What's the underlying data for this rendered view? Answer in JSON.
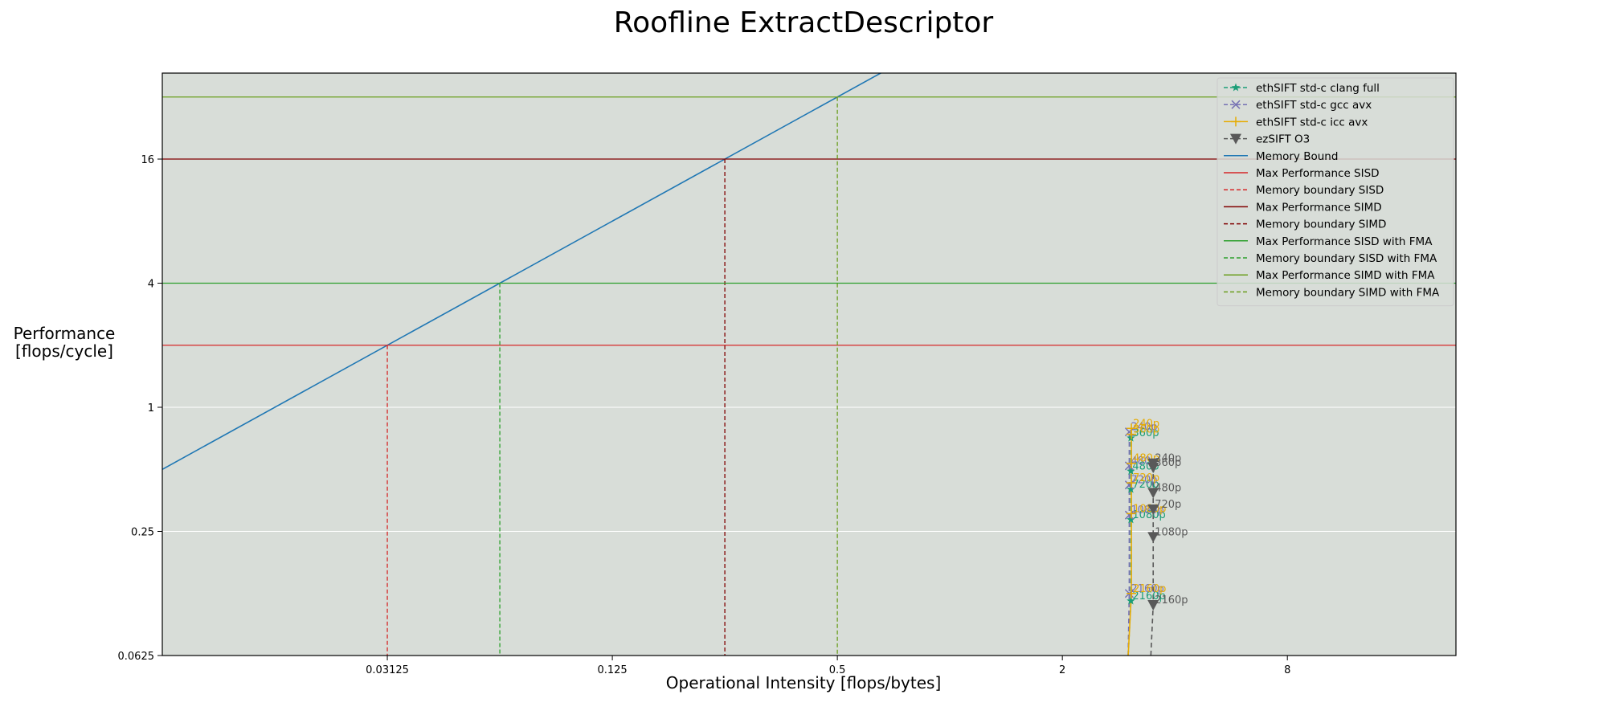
{
  "chart_data": {
    "type": "line",
    "title": "Roofline ExtractDescriptor",
    "xlabel": "Operational Intensity [flops/bytes]",
    "ylabel_lines": [
      "Performance",
      "[flops/cycle]"
    ],
    "x_scale": "log2",
    "y_scale": "log2",
    "xlim": [
      0.0078125,
      22.6
    ],
    "ylim": [
      0.0625,
      41.8
    ],
    "x_ticks": [
      {
        "value": 0.03125,
        "label": "0.03125"
      },
      {
        "value": 0.125,
        "label": "0.125"
      },
      {
        "value": 0.5,
        "label": "0.5"
      },
      {
        "value": 2,
        "label": "2"
      },
      {
        "value": 8,
        "label": "8"
      }
    ],
    "y_ticks": [
      {
        "value": 0.0625,
        "label": "0.0625"
      },
      {
        "value": 0.25,
        "label": "0.25"
      },
      {
        "value": 1,
        "label": "1"
      },
      {
        "value": 4,
        "label": "4"
      },
      {
        "value": 16,
        "label": "16"
      }
    ],
    "grid": "horizontal",
    "legend_position": "top-right",
    "background": "#d8ddd8",
    "series": [
      {
        "name": "ethSIFT std-c clang full",
        "kind": "measured",
        "color": "#1b9e77",
        "marker": "star",
        "line": "dashed",
        "points": [
          {
            "x": 3.0,
            "y": 0.045,
            "label": ""
          },
          {
            "x": 3.05,
            "y": 0.115,
            "label": "2160p"
          },
          {
            "x": 3.05,
            "y": 0.285,
            "label": "1080p"
          },
          {
            "x": 3.05,
            "y": 0.4,
            "label": "720p"
          },
          {
            "x": 3.05,
            "y": 0.49,
            "label": "480p"
          },
          {
            "x": 3.05,
            "y": 0.71,
            "label": "360p"
          }
        ]
      },
      {
        "name": "ethSIFT std-c gcc avx",
        "kind": "measured",
        "color": "#7570b3",
        "marker": "x",
        "line": "dashed",
        "points": [
          {
            "x": 3.0,
            "y": 0.045,
            "label": ""
          },
          {
            "x": 3.02,
            "y": 0.125,
            "label": "2160p"
          },
          {
            "x": 3.02,
            "y": 0.3,
            "label": "1080p"
          },
          {
            "x": 3.02,
            "y": 0.42,
            "label": "720p"
          },
          {
            "x": 3.02,
            "y": 0.52,
            "label": "480p"
          },
          {
            "x": 3.02,
            "y": 0.76,
            "label": "240p"
          }
        ]
      },
      {
        "name": "ethSIFT std-c icc avx",
        "kind": "measured",
        "color": "#e6ab02",
        "marker": "plus",
        "line": "solid",
        "points": [
          {
            "x": 3.0,
            "y": 0.045,
            "label": ""
          },
          {
            "x": 3.06,
            "y": 0.125,
            "label": "2160p"
          },
          {
            "x": 3.06,
            "y": 0.305,
            "label": "1080p"
          },
          {
            "x": 3.06,
            "y": 0.43,
            "label": "720p"
          },
          {
            "x": 3.06,
            "y": 0.535,
            "label": "480p"
          },
          {
            "x": 3.06,
            "y": 0.74,
            "label": "360p"
          },
          {
            "x": 3.06,
            "y": 0.79,
            "label": "240p"
          }
        ]
      },
      {
        "name": "ezSIFT O3",
        "kind": "measured",
        "color": "#595959",
        "marker": "triangle_down",
        "line": "dashed",
        "points": [
          {
            "x": 3.45,
            "y": 0.045,
            "label": ""
          },
          {
            "x": 3.5,
            "y": 0.11,
            "label": "2160p"
          },
          {
            "x": 3.5,
            "y": 0.235,
            "label": "1080p"
          },
          {
            "x": 3.5,
            "y": 0.32,
            "label": "720p"
          },
          {
            "x": 3.5,
            "y": 0.385,
            "label": "480p"
          },
          {
            "x": 3.5,
            "y": 0.51,
            "label": "360p"
          },
          {
            "x": 3.5,
            "y": 0.535,
            "label": "240p"
          }
        ]
      },
      {
        "name": "Memory Bound",
        "kind": "bandwidth",
        "color": "#1f77b4",
        "line": "solid",
        "slope_flops_per_byte": 64
      },
      {
        "name": "Max Performance SISD",
        "kind": "hline",
        "color": "#d62728",
        "line": "solid",
        "value": 2
      },
      {
        "name": "Memory boundary SISD",
        "kind": "vline",
        "color": "#d62728",
        "line": "dashed",
        "value": 0.03125,
        "top": 2
      },
      {
        "name": "Max Performance SIMD",
        "kind": "hline",
        "color": "#800000",
        "line": "solid",
        "value": 16
      },
      {
        "name": "Memory boundary SIMD",
        "kind": "vline",
        "color": "#800000",
        "line": "dashed",
        "value": 0.25,
        "top": 16
      },
      {
        "name": "Max Performance SISD with FMA",
        "kind": "hline",
        "color": "#2ca02c",
        "line": "solid",
        "value": 4
      },
      {
        "name": "Memory boundary SISD with FMA",
        "kind": "vline",
        "color": "#2ca02c",
        "line": "dashed",
        "value": 0.0625,
        "top": 4
      },
      {
        "name": "Max Performance SIMD with FMA",
        "kind": "hline",
        "color": "#6b9e1f",
        "line": "solid",
        "value": 32
      },
      {
        "name": "Memory boundary SIMD with FMA",
        "kind": "vline",
        "color": "#6b9e1f",
        "line": "dashed",
        "value": 0.5,
        "top": 32
      }
    ]
  }
}
